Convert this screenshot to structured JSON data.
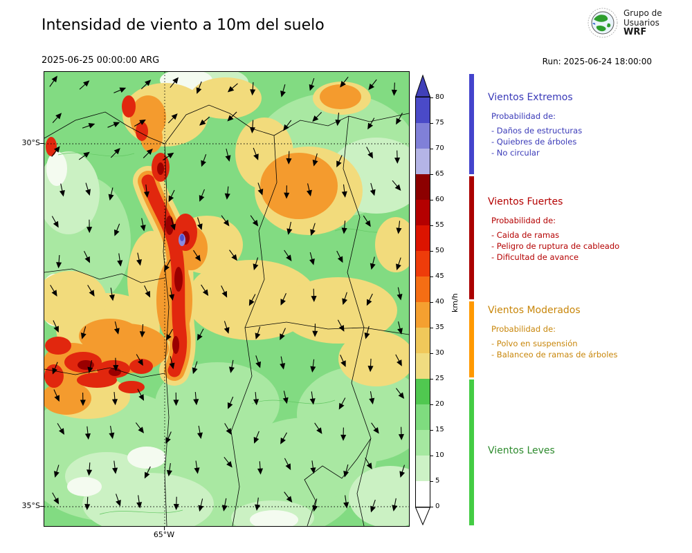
{
  "header": {
    "title": "Intensidad de viento a 10m del suelo",
    "valid_time": "2025-06-25 00:00:00 ARG",
    "run_label": "Run: 2025-06-24 18:00:00",
    "logo": {
      "line1": "Grupo de",
      "line2": "Usuarios",
      "line3": "WRF"
    }
  },
  "map": {
    "lat_labels": [
      "30°S",
      "35°S"
    ],
    "lon_labels": [
      "65°W"
    ]
  },
  "colorbar": {
    "unit": "km/h",
    "tick_labels": [
      "0",
      "5",
      "10",
      "15",
      "20",
      "25",
      "30",
      "35",
      "40",
      "45",
      "50",
      "55",
      "60",
      "65",
      "70",
      "75",
      "80"
    ],
    "segment_colors_top_to_bottom": [
      "#4A4AC8",
      "#8080D8",
      "#B4B4E6",
      "#8C0000",
      "#B40000",
      "#DC1400",
      "#EE3C0A",
      "#F56E14",
      "#F5A030",
      "#F0C85A",
      "#F0DC80",
      "#50C850",
      "#7FDC7F",
      "#A5E8A0",
      "#CDF2C6",
      "#FFFFFF"
    ],
    "over_arrow_color": "#4040B8",
    "under_color": "#FFFFFF"
  },
  "legend": {
    "bar_segments": [
      {
        "name": "extremos",
        "color": "#4444CC"
      },
      {
        "name": "fuertes",
        "color": "#AA0000"
      },
      {
        "name": "moderados",
        "color": "#FF9900"
      },
      {
        "name": "leves",
        "color": "#44CC44"
      }
    ],
    "sections": [
      {
        "title": "Vientos Extremos",
        "color": "#3939B8",
        "intro": "Probabilidad de:",
        "items": [
          "- Daños de estructuras",
          "- Quiebres de árboles",
          "- No circular"
        ]
      },
      {
        "title": "Vientos Fuertes",
        "color": "#B40000",
        "intro": "Probabilidad de:",
        "items": [
          "- Caida de ramas",
          "- Peligro de ruptura de cableado",
          "- Dificultad de avance"
        ]
      },
      {
        "title": "Vientos Moderados",
        "color": "#C8860A",
        "intro": "Probabilidad de:",
        "items": [
          "- Polvo en suspensión",
          "- Balanceo de ramas de árboles"
        ]
      },
      {
        "title": "Vientos Leves",
        "color": "#2E8B2E",
        "intro": "",
        "items": []
      }
    ]
  }
}
